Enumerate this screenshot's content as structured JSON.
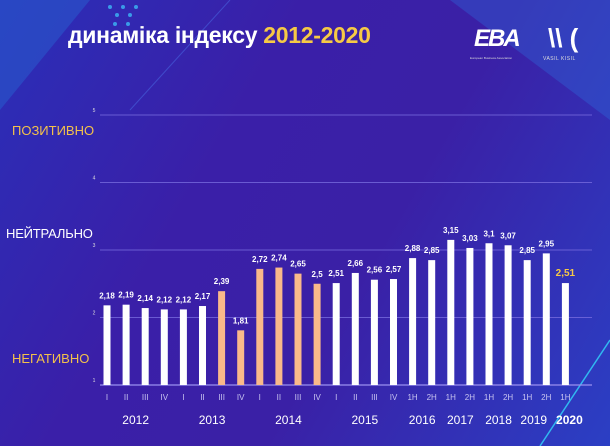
{
  "header": {
    "title_main": "динаміка індексу",
    "title_years": "2012-2020"
  },
  "logos": {
    "eba": "EBA",
    "eba_sub": "European Business Association",
    "vk": "VK",
    "vk_sub": "VASIL KISIL"
  },
  "zones": {
    "positive": "ПОЗИТИВНО",
    "neutral": "НЕЙТРАЛЬНО",
    "negative": "НЕГАТИВНО"
  },
  "colors": {
    "white_bar": "#ffffff",
    "highlight_bar": "#f9b98a",
    "last_label": "#f6c945",
    "grid": "#7b6fe0"
  },
  "chart_data": {
    "type": "bar",
    "ylim": [
      1,
      5
    ],
    "yticks": [
      "1",
      "2",
      "3",
      "4",
      "5"
    ],
    "grid": true,
    "categories": [
      "I",
      "II",
      "III",
      "IV",
      "I",
      "II",
      "III",
      "IV",
      "I",
      "II",
      "III",
      "IV",
      "I",
      "II",
      "III",
      "IV",
      "1H",
      "2H",
      "1H",
      "2H",
      "1H",
      "2H",
      "1H",
      "2H",
      "1H"
    ],
    "years": [
      {
        "label": "2012",
        "span": [
          0,
          3
        ]
      },
      {
        "label": "2013",
        "span": [
          4,
          7
        ]
      },
      {
        "label": "2014",
        "span": [
          8,
          11
        ]
      },
      {
        "label": "2015",
        "span": [
          12,
          15
        ]
      },
      {
        "label": "2016",
        "span": [
          16,
          17
        ]
      },
      {
        "label": "2017",
        "span": [
          18,
          19
        ]
      },
      {
        "label": "2018",
        "span": [
          20,
          21
        ]
      },
      {
        "label": "2019",
        "span": [
          22,
          23
        ]
      },
      {
        "label": "2020",
        "span": [
          24,
          24
        ]
      }
    ],
    "values": [
      2.18,
      2.19,
      2.14,
      2.12,
      2.12,
      2.17,
      2.39,
      1.81,
      2.72,
      2.74,
      2.65,
      2.5,
      2.51,
      2.66,
      2.56,
      2.57,
      2.88,
      2.85,
      3.15,
      3.03,
      3.1,
      3.07,
      2.85,
      2.95,
      2.51
    ],
    "labels": [
      "2,18",
      "2,19",
      "2,14",
      "2,12",
      "2,12",
      "2,17",
      "2,39",
      "1,81",
      "2,72",
      "2,74",
      "2,65",
      "2,5",
      "2,51",
      "2,66",
      "2,56",
      "2,57",
      "2,88",
      "2,85",
      "3,15",
      "3,03",
      "3,1",
      "3,07",
      "2,85",
      "2,95",
      "2,51"
    ],
    "highlighted": [
      6,
      7,
      8,
      9,
      10,
      11
    ]
  }
}
